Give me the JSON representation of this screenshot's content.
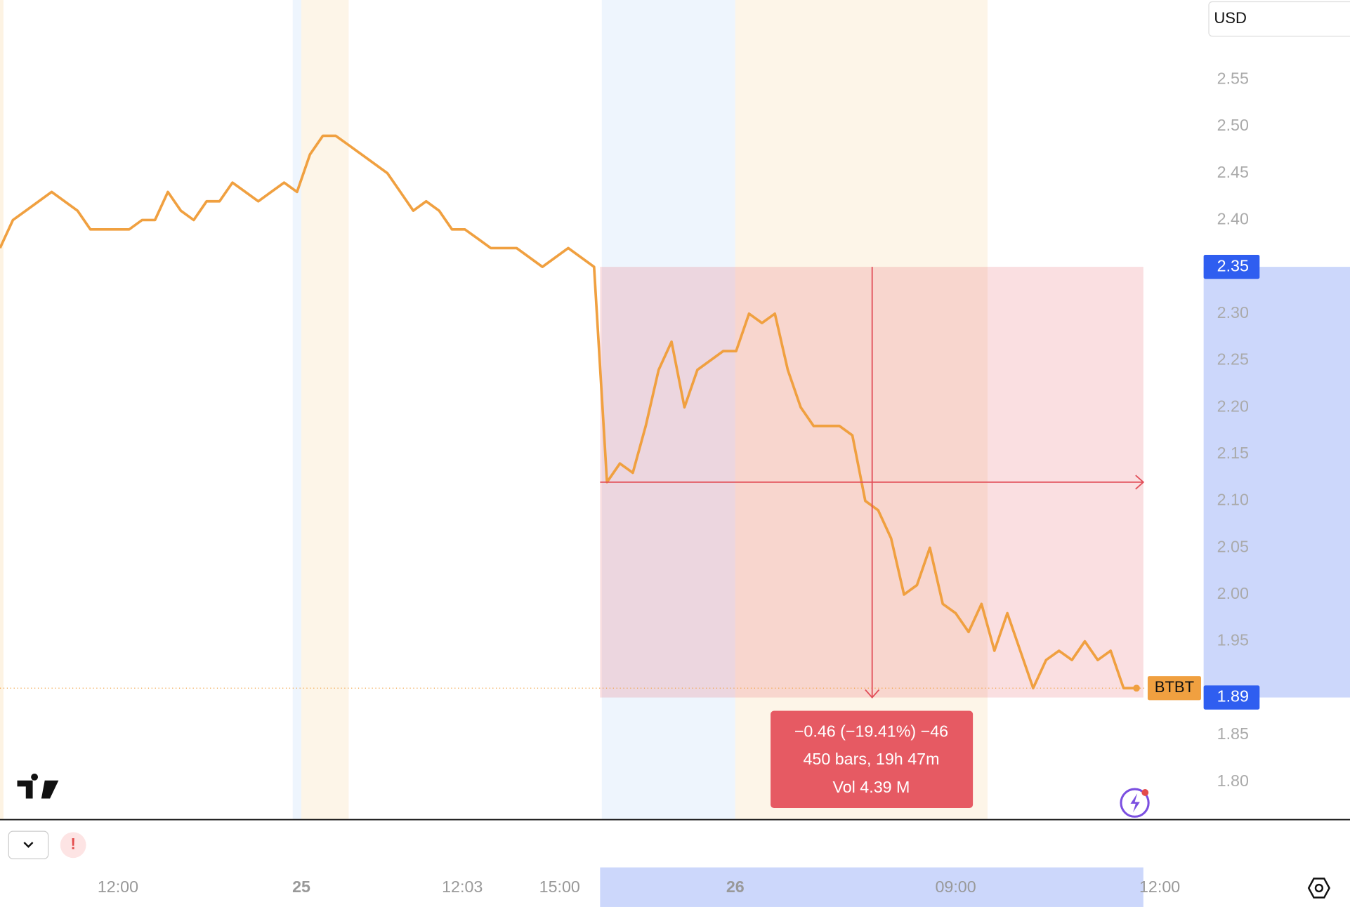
{
  "chart_data": {
    "type": "line",
    "currency": "USD",
    "series": [
      {
        "name": "BTBT",
        "color": "#f0a040",
        "values": [
          2.37,
          2.4,
          2.41,
          2.42,
          2.43,
          2.42,
          2.41,
          2.39,
          2.39,
          2.39,
          2.39,
          2.4,
          2.4,
          2.43,
          2.41,
          2.4,
          2.42,
          2.42,
          2.44,
          2.43,
          2.42,
          2.43,
          2.44,
          2.43,
          2.47,
          2.49,
          2.49,
          2.48,
          2.47,
          2.46,
          2.45,
          2.43,
          2.41,
          2.42,
          2.41,
          2.39,
          2.39,
          2.38,
          2.37,
          2.37,
          2.37,
          2.36,
          2.35,
          2.36,
          2.37,
          2.36,
          2.35,
          2.12,
          2.14,
          2.13,
          2.18,
          2.24,
          2.27,
          2.2,
          2.24,
          2.25,
          2.26,
          2.26,
          2.3,
          2.29,
          2.3,
          2.24,
          2.2,
          2.18,
          2.18,
          2.18,
          2.17,
          2.1,
          2.09,
          2.06,
          2.0,
          2.01,
          2.05,
          1.99,
          1.98,
          1.96,
          1.99,
          1.94,
          1.98,
          1.94,
          1.9,
          1.93,
          1.94,
          1.93,
          1.95,
          1.93,
          1.94,
          1.9,
          1.9
        ]
      }
    ],
    "ylim": [
      1.76,
      2.635
    ],
    "yticks": [
      {
        "value": 1.8,
        "label": "1.80"
      },
      1.85,
      1.95,
      {
        "value": 2.0,
        "label": "2.00"
      },
      2.05,
      {
        "value": 2.1,
        "label": "2.10"
      },
      2.15,
      {
        "value": 2.2,
        "label": "2.20"
      },
      2.25,
      {
        "value": 2.3,
        "label": "2.30"
      },
      {
        "value": 2.4,
        "label": "2.40"
      },
      2.45,
      {
        "value": 2.5,
        "label": "2.50"
      },
      2.55
    ],
    "x_labels": [
      "12:00",
      "25",
      "12:03",
      "15:00",
      "26",
      "09:00",
      "12:00"
    ],
    "measure": {
      "start_price": 2.35,
      "end_price": 1.89,
      "lines": [
        "−0.46 (−19.41%) −46",
        "450 bars, 19h 47m",
        "Vol 4.39 M"
      ]
    }
  }
}
